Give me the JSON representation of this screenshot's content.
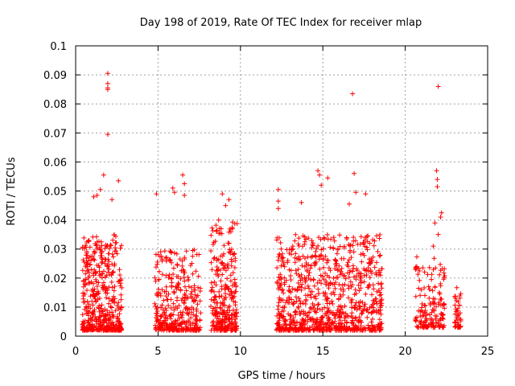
{
  "chart_data": {
    "type": "scatter",
    "title": "Day 198 of 2019, Rate Of TEC Index for receiver mlap",
    "xlabel": "GPS time / hours",
    "ylabel": "ROTI / TECUs",
    "xlim": [
      0,
      25
    ],
    "ylim": [
      0,
      0.1
    ],
    "x_ticks": [
      0,
      5,
      10,
      15,
      20,
      25
    ],
    "x_tick_labels": [
      "0",
      "5",
      "10",
      "15",
      "20",
      "25"
    ],
    "y_ticks": [
      0,
      0.01,
      0.02,
      0.03,
      0.04,
      0.05,
      0.06,
      0.07,
      0.08,
      0.09,
      0.1
    ],
    "y_tick_labels": [
      "0",
      "0.01",
      "0.02",
      "0.03",
      "0.04",
      "0.05",
      "0.06",
      "0.07",
      "0.08",
      "0.09",
      "0.1"
    ],
    "grid": true,
    "marker": "+",
    "color": "#ff0000",
    "clusters": [
      {
        "x_start": 0.4,
        "x_end": 2.8,
        "y_min": 0.002,
        "y_max": 0.035,
        "count": 480
      },
      {
        "x_start": 4.8,
        "x_end": 7.6,
        "y_min": 0.002,
        "y_max": 0.03,
        "count": 360
      },
      {
        "x_start": 8.2,
        "x_end": 9.8,
        "y_min": 0.002,
        "y_max": 0.04,
        "count": 300
      },
      {
        "x_start": 12.2,
        "x_end": 18.6,
        "y_min": 0.002,
        "y_max": 0.035,
        "count": 900
      },
      {
        "x_start": 20.6,
        "x_end": 22.4,
        "y_min": 0.003,
        "y_max": 0.028,
        "count": 160
      },
      {
        "x_start": 23.0,
        "x_end": 23.4,
        "y_min": 0.003,
        "y_max": 0.018,
        "count": 40
      }
    ],
    "outliers": [
      {
        "x": 1.95,
        "y": 0.0905
      },
      {
        "x": 1.95,
        "y": 0.087
      },
      {
        "x": 1.95,
        "y": 0.0855
      },
      {
        "x": 1.95,
        "y": 0.085
      },
      {
        "x": 1.95,
        "y": 0.0695
      },
      {
        "x": 1.7,
        "y": 0.0555
      },
      {
        "x": 2.6,
        "y": 0.0535
      },
      {
        "x": 1.3,
        "y": 0.0485
      },
      {
        "x": 1.5,
        "y": 0.0505
      },
      {
        "x": 1.1,
        "y": 0.048
      },
      {
        "x": 2.2,
        "y": 0.047
      },
      {
        "x": 4.9,
        "y": 0.049
      },
      {
        "x": 6.5,
        "y": 0.0555
      },
      {
        "x": 6.6,
        "y": 0.0525
      },
      {
        "x": 6.6,
        "y": 0.0485
      },
      {
        "x": 5.9,
        "y": 0.051
      },
      {
        "x": 6.0,
        "y": 0.0495
      },
      {
        "x": 8.9,
        "y": 0.049
      },
      {
        "x": 9.3,
        "y": 0.047
      },
      {
        "x": 9.1,
        "y": 0.045
      },
      {
        "x": 12.3,
        "y": 0.0505
      },
      {
        "x": 12.3,
        "y": 0.0465
      },
      {
        "x": 12.3,
        "y": 0.044
      },
      {
        "x": 14.7,
        "y": 0.057
      },
      {
        "x": 14.8,
        "y": 0.0555
      },
      {
        "x": 14.9,
        "y": 0.052
      },
      {
        "x": 15.3,
        "y": 0.0545
      },
      {
        "x": 16.8,
        "y": 0.0835
      },
      {
        "x": 16.9,
        "y": 0.056
      },
      {
        "x": 17.0,
        "y": 0.0495
      },
      {
        "x": 17.6,
        "y": 0.049
      },
      {
        "x": 16.6,
        "y": 0.0455
      },
      {
        "x": 13.7,
        "y": 0.046
      },
      {
        "x": 22.0,
        "y": 0.086
      },
      {
        "x": 21.9,
        "y": 0.057
      },
      {
        "x": 21.95,
        "y": 0.054
      },
      {
        "x": 21.95,
        "y": 0.0515
      },
      {
        "x": 22.2,
        "y": 0.0425
      },
      {
        "x": 22.15,
        "y": 0.041
      },
      {
        "x": 21.8,
        "y": 0.039
      },
      {
        "x": 22.0,
        "y": 0.035
      },
      {
        "x": 21.7,
        "y": 0.031
      }
    ]
  }
}
